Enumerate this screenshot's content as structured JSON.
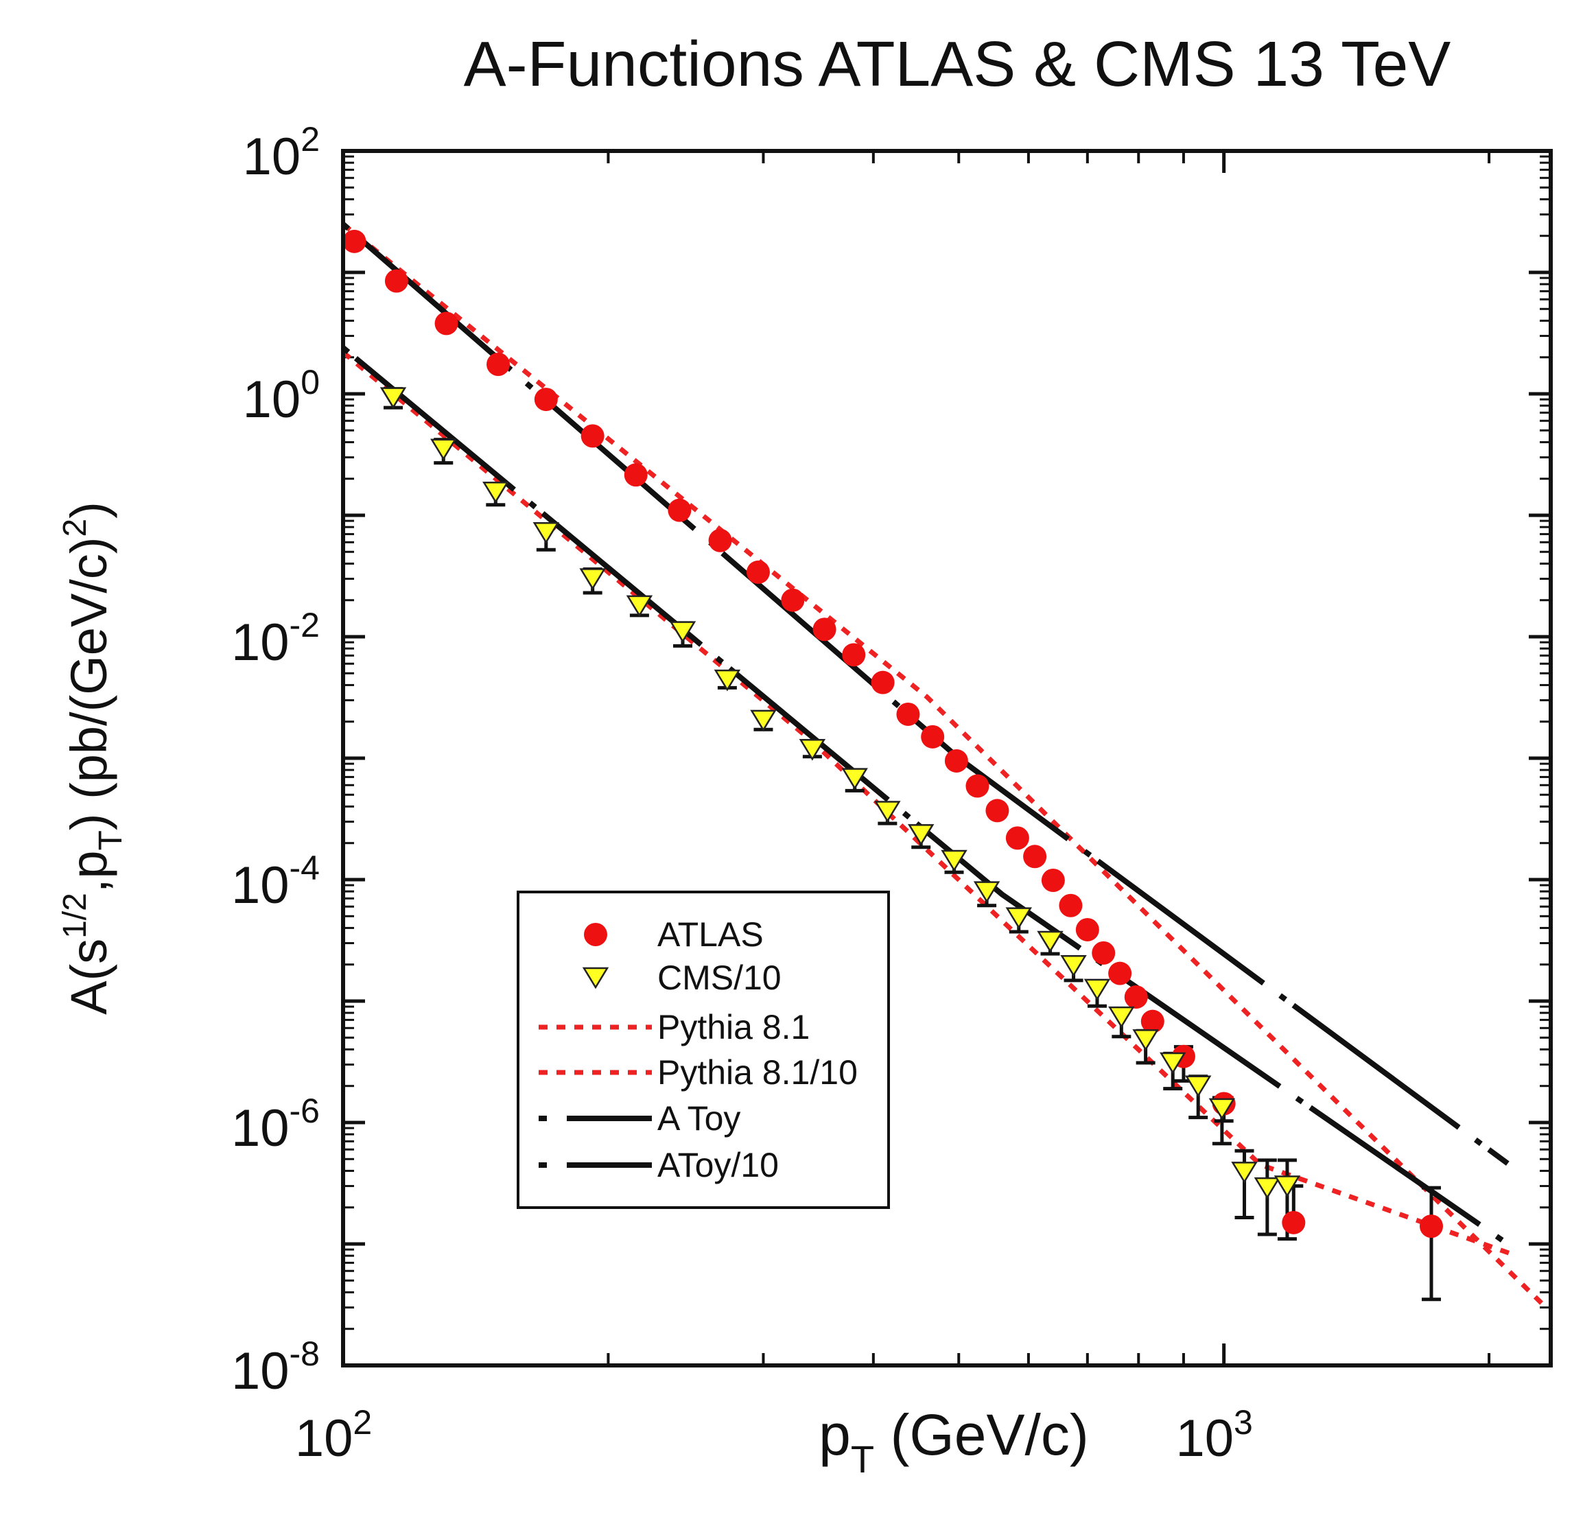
{
  "chart_data": {
    "type": "scatter",
    "title": "A-Functions ATLAS & CMS 13 TeV",
    "xlabel": {
      "base": "p",
      "sub": "T",
      "rest": " (GeV/c)"
    },
    "ylabel": {
      "a": "A(s",
      "sup1": "1/2",
      "b": ",p",
      "sub": "T",
      "c": ") (pb/(GeV/c)",
      "sup2": "2",
      "d": ")"
    },
    "x_scale": "log",
    "y_scale": "log",
    "xlim": [
      100,
      2350
    ],
    "ylim": [
      1e-08,
      100
    ],
    "x_major_ticks": [
      {
        "value": 100,
        "base": "10",
        "exp": "2"
      },
      {
        "value": 1000,
        "base": "10",
        "exp": "3"
      }
    ],
    "y_major_ticks": [
      {
        "value": 100,
        "base": "10",
        "exp": "2"
      },
      {
        "value": 1,
        "base": "10",
        "exp": "0"
      },
      {
        "value": 0.01,
        "base": "10",
        "exp": "-2"
      },
      {
        "value": 0.0001,
        "base": "10",
        "exp": "-4"
      },
      {
        "value": 1e-06,
        "base": "10",
        "exp": "-6"
      },
      {
        "value": 1e-08,
        "base": "10",
        "exp": "-8"
      }
    ],
    "series": [
      {
        "name": "ATLAS",
        "marker": "circle",
        "color": "#ee1111",
        "x": [
          103,
          115,
          131,
          150,
          170,
          192,
          215,
          241,
          268,
          296,
          324,
          352,
          380,
          410,
          438,
          467,
          497,
          525,
          553,
          583,
          610,
          640,
          670,
          700,
          730,
          762,
          795,
          830,
          900,
          1000,
          1200,
          1720
        ],
        "y": [
          18,
          8.5,
          3.8,
          1.75,
          0.9,
          0.45,
          0.215,
          0.11,
          0.062,
          0.034,
          0.02,
          0.0115,
          0.0071,
          0.0042,
          0.0023,
          0.0015,
          0.00095,
          0.00059,
          0.00037,
          0.00022,
          0.000155,
          9.87e-05,
          6.12e-05,
          3.87e-05,
          2.49e-05,
          1.69e-05,
          1.08e-05,
          6.8e-06,
          3.5e-06,
          1.43e-06,
          1.5e-07,
          1.4e-07
        ],
        "err_low": [
          0,
          0,
          0,
          0,
          0,
          0,
          0,
          0,
          0,
          0,
          0,
          0,
          0,
          0,
          0,
          0,
          0,
          0,
          0,
          0,
          0,
          0,
          0,
          0,
          0,
          0,
          0,
          0,
          2.2e-06,
          1.03e-06,
          1.5e-07,
          3.5e-08
        ],
        "err_high": [
          0,
          0,
          0,
          0,
          0,
          0,
          0,
          0,
          0,
          0,
          0,
          0,
          0,
          0,
          0,
          0,
          0,
          0,
          0,
          0,
          0,
          0,
          0,
          0,
          0,
          0,
          0,
          0,
          4.2e-06,
          1.6e-06,
          3e-07,
          2.9e-07
        ]
      },
      {
        "name": "CMS/10",
        "marker": "triangle-down",
        "color": "#ffff22",
        "x": [
          114,
          130,
          149,
          170,
          192,
          217,
          243,
          273,
          300,
          341,
          381,
          415,
          453,
          494,
          538,
          585,
          635,
          675,
          718,
          765,
          815,
          875,
          935,
          995,
          1055,
          1120,
          1180
        ],
        "y": [
          0.93,
          0.35,
          0.155,
          0.072,
          0.03,
          0.018,
          0.011,
          0.0044,
          0.00205,
          0.00118,
          0.00068,
          0.000365,
          0.000235,
          0.000144,
          7.95e-05,
          4.85e-05,
          3.1e-05,
          1.96e-05,
          1.25e-05,
          7.4e-06,
          4.8e-06,
          3.1e-06,
          2e-06,
          1.3e-06,
          3.9e-07,
          2.9e-07,
          3e-07
        ],
        "err_low": [
          0.77,
          0.27,
          0.122,
          0.052,
          0.023,
          0.015,
          0.0084,
          0.0038,
          0.00172,
          0.00103,
          0.00054,
          0.00029,
          0.000185,
          0.000115,
          6.12e-05,
          3.72e-05,
          2.45e-05,
          1.48e-05,
          9.1e-06,
          5.1e-06,
          3.1e-06,
          1.9e-06,
          1.1e-06,
          6.7e-07,
          1.65e-07,
          1.2e-07,
          1.1e-07
        ],
        "err_high": [
          1.1,
          0.42,
          0.18,
          0.085,
          0.036,
          0.021,
          0.013,
          0.0051,
          0.0024,
          0.00135,
          0.00078,
          0.00042,
          0.00027,
          0.000165,
          9.15e-05,
          5.61e-05,
          3.57e-05,
          2.27e-05,
          1.45e-05,
          8.6e-06,
          5.7e-06,
          3.7e-06,
          2.4e-06,
          1.6e-06,
          5.85e-07,
          4.9e-07,
          4.9e-07
        ]
      },
      {
        "name": "Pythia 8.1",
        "style": "dotted",
        "color": "#ee2222",
        "x": [
          100,
          460,
          1400,
          2300
        ],
        "y": [
          25,
          0.0032,
          1.1e-06,
          3.2e-08
        ]
      },
      {
        "name": "Pythia 8.1/10",
        "style": "dotted",
        "color": "#ee2222",
        "x": [
          100,
          340,
          1100,
          2150
        ],
        "y": [
          2.2,
          0.0014,
          4.5e-07,
          8e-08
        ]
      },
      {
        "name": "A Toy",
        "style": "dashed",
        "color": "#111111",
        "x": [
          100,
          500,
          2100
        ],
        "y": [
          25,
          0.001,
          4.6e-07
        ]
      },
      {
        "name": "AToy/10",
        "style": "dashed",
        "color": "#111111",
        "x": [
          100,
          560,
          2100
        ],
        "y": [
          2.4,
          7.56e-05,
          1e-07
        ]
      }
    ],
    "legend": {
      "position": "lower-left",
      "entries": [
        "ATLAS",
        "CMS/10",
        "Pythia 8.1",
        "Pythia 8.1/10",
        "A Toy",
        "AToy/10"
      ]
    }
  }
}
